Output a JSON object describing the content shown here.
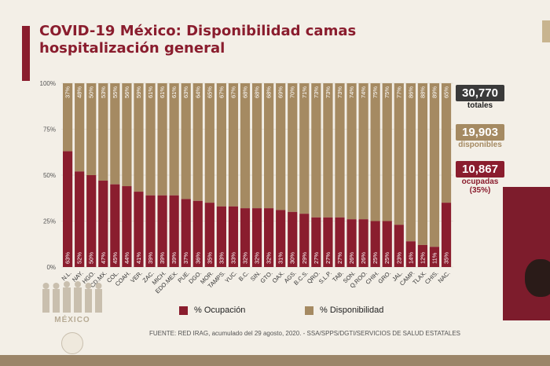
{
  "title": "COVID-19 México: Disponibilidad camas hospitalización general",
  "stats": {
    "total_value": "30,770",
    "total_label": "totales",
    "available_value": "19,903",
    "available_label": "disponibles",
    "occupied_value": "10,867",
    "occupied_label": "ocupadas",
    "occupied_pct": "(35%)"
  },
  "legend": {
    "occupied": "% Ocupación",
    "available": "% Disponibilidad"
  },
  "source": "FUENTE: RED IRAG, acumulado del 29 agosto, 2020. - SSA/SPPS/DGTI/SERVICIOS DE SALUD ESTATALES",
  "logo_text": "MÉXICO",
  "colors": {
    "occupied": "#8a1d2e",
    "available": "#a58a62",
    "accent": "#8a1d2e",
    "total_box": "#3a3a3a",
    "available_text": "#a58a62"
  },
  "chart_data": {
    "type": "bar",
    "stacked": true,
    "y_ticks": [
      "0%",
      "25%",
      "50%",
      "75%",
      "100%"
    ],
    "ylim": [
      0,
      100
    ],
    "categories": [
      "N.L.",
      "NAY.",
      "HGO.",
      "CD.MX.",
      "COL.",
      "COAH.",
      "VER.",
      "ZAC.",
      "MICH.",
      "EDO.MEX.",
      "PUE.",
      "DGO.",
      "MOR.",
      "TAMPS.",
      "YUC.",
      "B.C.",
      "SIN.",
      "GTO.",
      "OAX.",
      "AGS.",
      "B.C.S.",
      "QRO.",
      "S.L.P.",
      "TAB.",
      "SON.",
      "Q.ROO.",
      "CHIH.",
      "GRO.",
      "JAL.",
      "CAMP.",
      "TLAX.",
      "CHIS.",
      "NAC."
    ],
    "series": [
      {
        "name": "% Ocupación",
        "values": [
          63,
          52,
          50,
          47,
          45,
          44,
          41,
          39,
          39,
          39,
          37,
          36,
          35,
          33,
          33,
          32,
          32,
          32,
          31,
          30,
          29,
          27,
          27,
          27,
          26,
          26,
          25,
          25,
          23,
          14,
          12,
          11,
          35
        ]
      },
      {
        "name": "% Disponibilidad",
        "values": [
          37,
          48,
          50,
          53,
          55,
          56,
          59,
          61,
          61,
          61,
          63,
          64,
          65,
          67,
          67,
          68,
          68,
          68,
          69,
          70,
          71,
          73,
          73,
          73,
          74,
          74,
          75,
          75,
          77,
          86,
          88,
          89,
          65
        ]
      }
    ]
  }
}
